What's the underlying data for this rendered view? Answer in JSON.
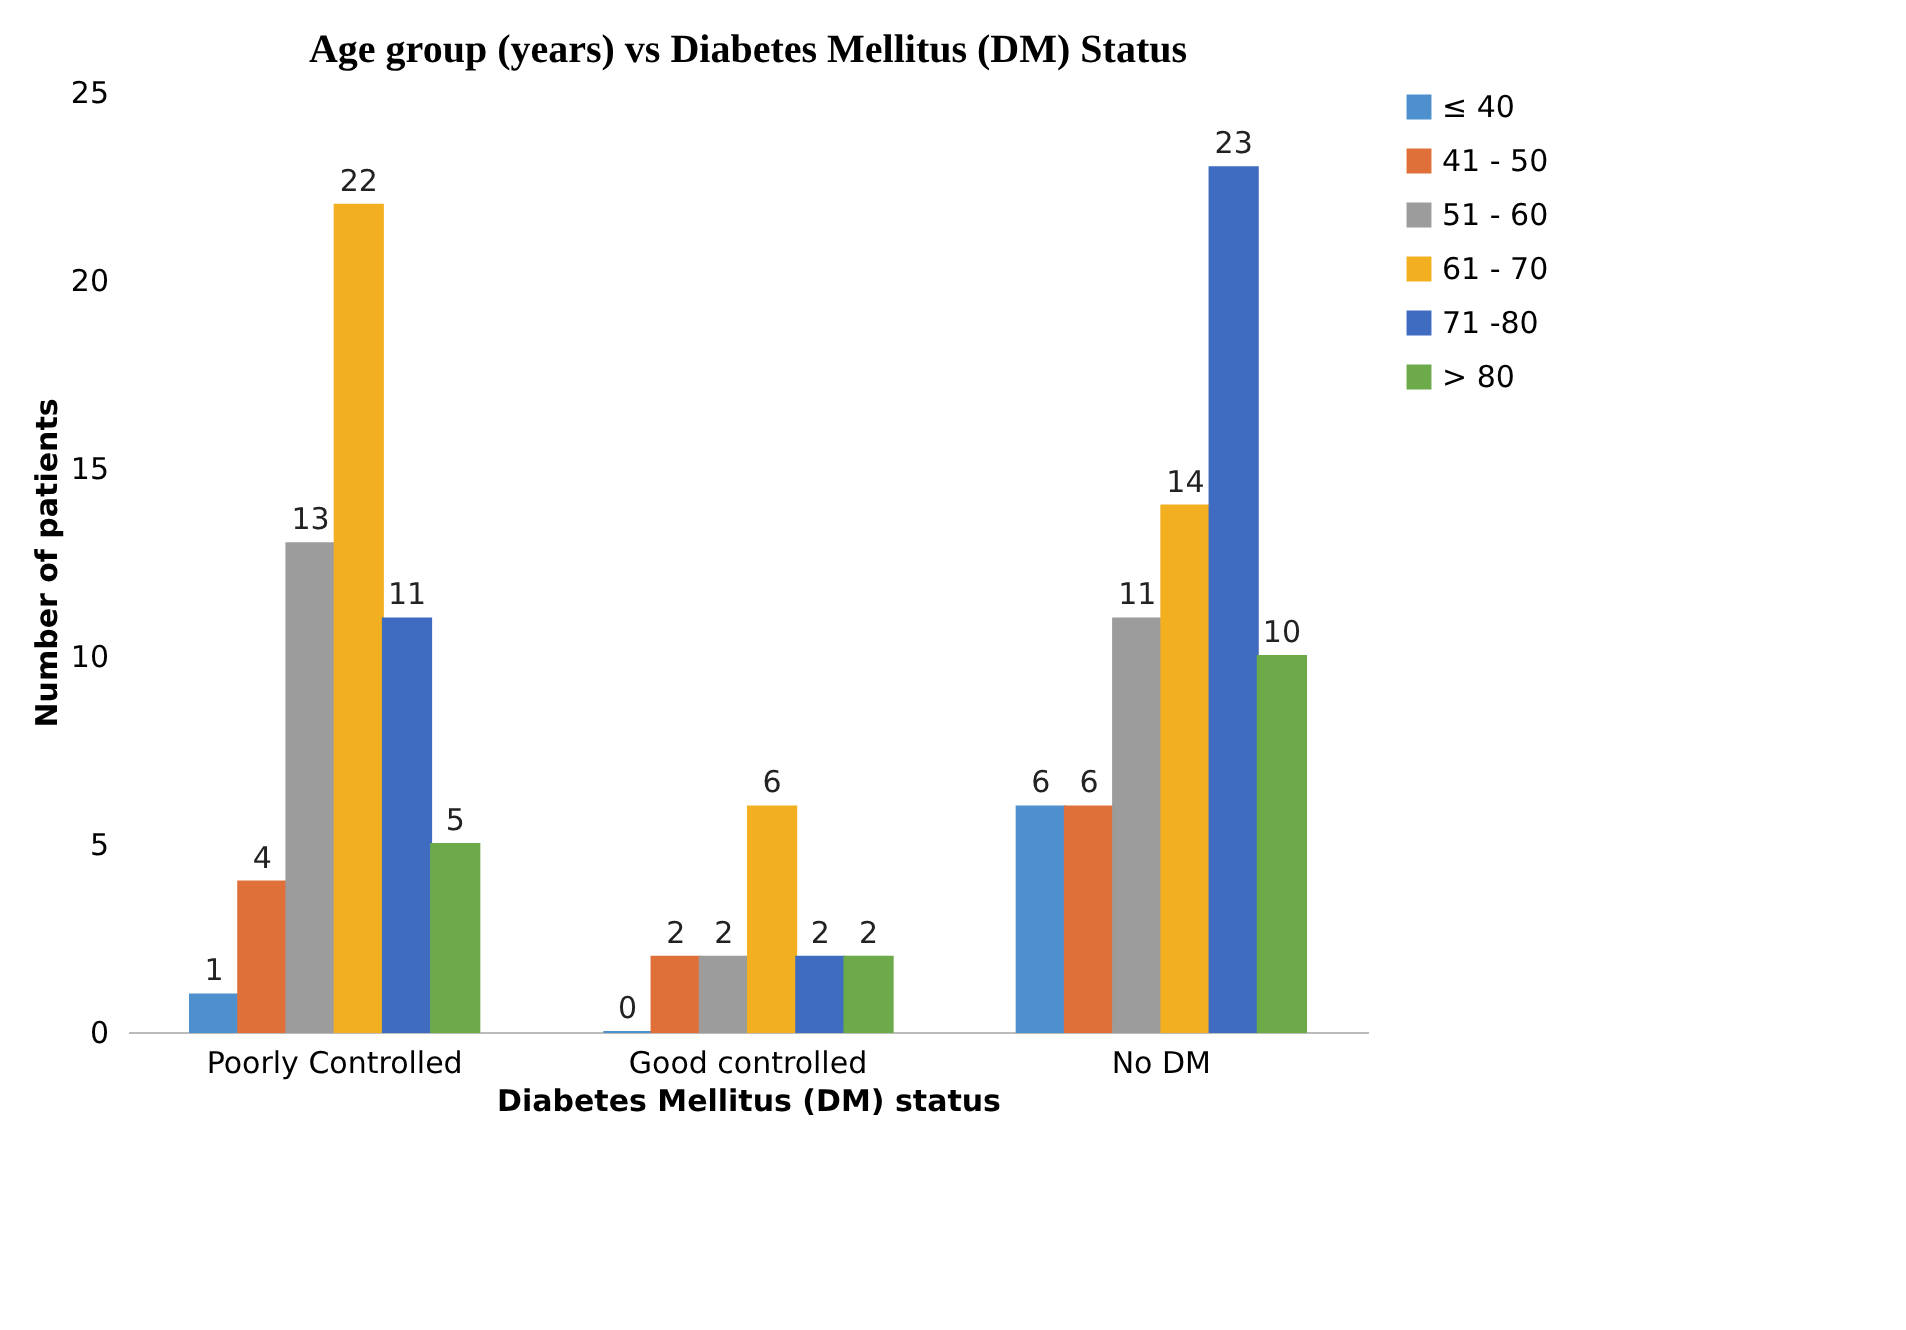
{
  "chart_data": {
    "type": "bar",
    "title": "Age group  (years) vs Diabetes Mellitus (DM) Status",
    "xlabel": "Diabetes Mellitus (DM) status",
    "ylabel": "Number of patients",
    "categories": [
      "Poorly Controlled",
      "Good controlled",
      "No DM"
    ],
    "series": [
      {
        "name": "≤ 40",
        "color": "#4e8fcd",
        "values": [
          1,
          0,
          6
        ]
      },
      {
        "name": "41 - 50",
        "color": "#e0703a",
        "values": [
          4,
          2,
          6
        ]
      },
      {
        "name": "51 - 60",
        "color": "#9c9c9c",
        "values": [
          13,
          2,
          11
        ]
      },
      {
        "name": "61 - 70",
        "color": "#f2b021",
        "values": [
          22,
          6,
          14
        ]
      },
      {
        "name": "71 -80",
        "color": "#3f6cc0",
        "values": [
          11,
          2,
          23
        ]
      },
      {
        "name": "> 80",
        "color": "#6daa4a",
        "values": [
          5,
          2,
          10
        ]
      }
    ],
    "ylim": [
      0,
      25
    ],
    "yticks": [
      0,
      5,
      10,
      15,
      20,
      25
    ],
    "grid": false,
    "legend": "right",
    "data_labels": true
  }
}
